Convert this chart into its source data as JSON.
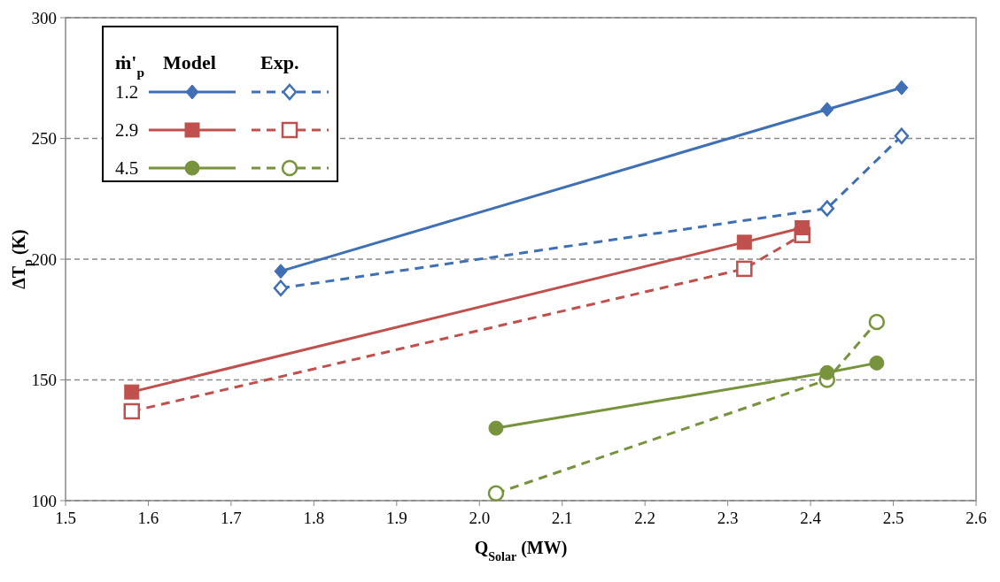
{
  "chart_data": {
    "type": "line",
    "xlabel": "Q$_{Solar}$ (MW)",
    "ylabel": "ΔT$_{p}$ (K)",
    "legend_title": "ṁ'$_{p}$",
    "annotations": [
      "Model",
      "Exp."
    ],
    "xlim": [
      1.5,
      2.6
    ],
    "xticks": [
      {
        "value": 1.5,
        "label": "1.5"
      },
      {
        "value": 1.6,
        "label": "1.6"
      },
      {
        "value": 1.7,
        "label": "1.7"
      },
      {
        "value": 1.8,
        "label": "1.8"
      },
      {
        "value": 1.9,
        "label": "1.9"
      },
      {
        "value": 2.0,
        "label": "2.0"
      },
      {
        "value": 2.1,
        "label": "2.1"
      },
      {
        "value": 2.2,
        "label": "2.2"
      },
      {
        "value": 2.3,
        "label": "2.3"
      },
      {
        "value": 2.4,
        "label": "2.4"
      },
      {
        "value": 2.5,
        "label": "2.5"
      },
      {
        "value": 2.6,
        "label": "2.6"
      }
    ],
    "ylim": [
      100,
      300
    ],
    "yticks": [
      100,
      150,
      200,
      250,
      300
    ],
    "grid": "y",
    "legend": "top left",
    "series": [
      {
        "name": "1.2",
        "color": "#3f6fb5",
        "marker": "diamond",
        "line_style": "solid",
        "x": [
          1.76,
          2.42,
          2.51
        ],
        "values": [
          195,
          262,
          271
        ]
      },
      {
        "color": "#3f6fb5",
        "marker": "diamond",
        "line_style": "dashed",
        "x": [
          1.76,
          2.42,
          2.51
        ],
        "values": [
          188,
          221,
          251
        ]
      },
      {
        "name": "2.9",
        "color": "#c0504d",
        "marker": "square",
        "line_style": "solid",
        "x": [
          1.58,
          2.32,
          2.39
        ],
        "values": [
          145,
          207,
          213
        ]
      },
      {
        "color": "#c0504d",
        "marker": "square",
        "line_style": "dashed",
        "x": [
          1.58,
          2.32,
          2.39
        ],
        "values": [
          137,
          196,
          210
        ]
      },
      {
        "name": "4.5",
        "color": "#77933c",
        "marker": "circle",
        "line_style": "solid",
        "x": [
          2.02,
          2.42,
          2.48
        ],
        "values": [
          130,
          153,
          157
        ]
      },
      {
        "color": "#77933c",
        "marker": "circle",
        "line_style": "dashed",
        "x": [
          2.02,
          2.42,
          2.48
        ],
        "values": [
          103,
          150,
          174
        ]
      }
    ]
  }
}
